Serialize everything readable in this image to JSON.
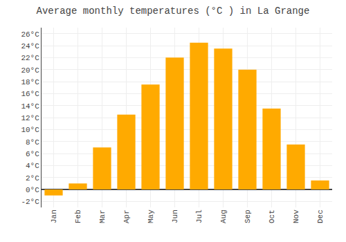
{
  "chart_data": {
    "type": "bar",
    "title": "Average monthly temperatures (°C ) in La Grange",
    "categories": [
      "Jan",
      "Feb",
      "Mar",
      "Apr",
      "May",
      "Jun",
      "Jul",
      "Aug",
      "Sep",
      "Oct",
      "Nov",
      "Dec"
    ],
    "values": [
      -1.0,
      1.0,
      7.0,
      12.5,
      17.5,
      22.0,
      24.5,
      23.5,
      20.0,
      13.5,
      7.5,
      1.5
    ],
    "color": "#FFAA00",
    "ylim": [
      -3,
      27
    ],
    "yticks": [
      {
        "value": -2,
        "label": "-2°C"
      },
      {
        "value": 0,
        "label": "0°C"
      },
      {
        "value": 2,
        "label": "2°C"
      },
      {
        "value": 4,
        "label": "4°C"
      },
      {
        "value": 6,
        "label": "6°C"
      },
      {
        "value": 8,
        "label": "8°C"
      },
      {
        "value": 10,
        "label": "10°C"
      },
      {
        "value": 12,
        "label": "12°C"
      },
      {
        "value": 14,
        "label": "14°C"
      },
      {
        "value": 16,
        "label": "16°C"
      },
      {
        "value": 18,
        "label": "18°C"
      },
      {
        "value": 20,
        "label": "20°C"
      },
      {
        "value": 22,
        "label": "22°C"
      },
      {
        "value": 24,
        "label": "24°C"
      },
      {
        "value": 26,
        "label": "26°C"
      }
    ],
    "grid": true
  }
}
